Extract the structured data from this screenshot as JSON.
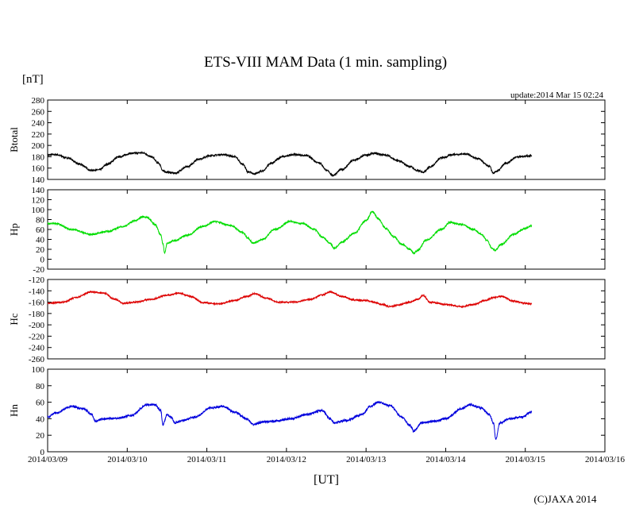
{
  "chart_data": {
    "type": "line",
    "title": "ETS-VIII MAM Data (1 min. sampling)",
    "unit_label": "[nT]",
    "update_label": "update:2014 Mar 15 02:24",
    "xlabel": "[UT]",
    "copyright": "(C)JAXA 2014",
    "x_ticks": [
      "2014/03/09",
      "2014/03/10",
      "2014/03/11",
      "2014/03/12",
      "2014/03/13",
      "2014/03/14",
      "2014/03/15",
      "2014/03/16"
    ],
    "x_range_days": [
      0,
      7
    ],
    "grid": false,
    "panels": [
      {
        "ylabel": "Btotal",
        "ylim": [
          140,
          280
        ],
        "yticks": [
          140,
          160,
          180,
          200,
          220,
          240,
          260,
          280
        ],
        "color": "#000000",
        "noise": 1.5,
        "series": [
          [
            0,
            183
          ],
          [
            0.1,
            184
          ],
          [
            0.25,
            178
          ],
          [
            0.4,
            167
          ],
          [
            0.55,
            156
          ],
          [
            0.65,
            157
          ],
          [
            0.75,
            167
          ],
          [
            0.9,
            180
          ],
          [
            1.05,
            186
          ],
          [
            1.2,
            187
          ],
          [
            1.3,
            180
          ],
          [
            1.4,
            168
          ],
          [
            1.45,
            155
          ],
          [
            1.5,
            153
          ],
          [
            1.6,
            151
          ],
          [
            1.75,
            162
          ],
          [
            1.9,
            176
          ],
          [
            2.05,
            182
          ],
          [
            2.2,
            184
          ],
          [
            2.35,
            180
          ],
          [
            2.45,
            167
          ],
          [
            2.52,
            153
          ],
          [
            2.6,
            150
          ],
          [
            2.7,
            155
          ],
          [
            2.8,
            168
          ],
          [
            2.95,
            180
          ],
          [
            3.1,
            184
          ],
          [
            3.25,
            182
          ],
          [
            3.4,
            170
          ],
          [
            3.52,
            155
          ],
          [
            3.58,
            147
          ],
          [
            3.7,
            158
          ],
          [
            3.85,
            174
          ],
          [
            4.0,
            183
          ],
          [
            4.1,
            186
          ],
          [
            4.25,
            183
          ],
          [
            4.4,
            173
          ],
          [
            4.55,
            163
          ],
          [
            4.65,
            155
          ],
          [
            4.72,
            153
          ],
          [
            4.8,
            162
          ],
          [
            4.95,
            178
          ],
          [
            5.1,
            184
          ],
          [
            5.25,
            185
          ],
          [
            5.4,
            177
          ],
          [
            5.55,
            163
          ],
          [
            5.6,
            151
          ],
          [
            5.65,
            155
          ],
          [
            5.75,
            168
          ],
          [
            5.9,
            180
          ],
          [
            6.08,
            182
          ]
        ]
      },
      {
        "ylabel": "Hp",
        "ylim": [
          -20,
          140
        ],
        "yticks": [
          -20,
          0,
          20,
          40,
          60,
          80,
          100,
          120,
          140
        ],
        "color": "#00dd00",
        "noise": 1.5,
        "series": [
          [
            0,
            72
          ],
          [
            0.1,
            72
          ],
          [
            0.3,
            60
          ],
          [
            0.55,
            50
          ],
          [
            0.75,
            56
          ],
          [
            0.95,
            66
          ],
          [
            1.1,
            78
          ],
          [
            1.2,
            86
          ],
          [
            1.25,
            84
          ],
          [
            1.35,
            70
          ],
          [
            1.42,
            50
          ],
          [
            1.45,
            30
          ],
          [
            1.47,
            12
          ],
          [
            1.5,
            32
          ],
          [
            1.6,
            38
          ],
          [
            1.75,
            48
          ],
          [
            1.95,
            66
          ],
          [
            2.1,
            76
          ],
          [
            2.3,
            68
          ],
          [
            2.45,
            54
          ],
          [
            2.52,
            42
          ],
          [
            2.58,
            32
          ],
          [
            2.7,
            40
          ],
          [
            2.85,
            60
          ],
          [
            3.05,
            76
          ],
          [
            3.2,
            72
          ],
          [
            3.35,
            60
          ],
          [
            3.45,
            45
          ],
          [
            3.55,
            32
          ],
          [
            3.6,
            22
          ],
          [
            3.7,
            35
          ],
          [
            3.85,
            52
          ],
          [
            4.0,
            78
          ],
          [
            4.08,
            96
          ],
          [
            4.15,
            82
          ],
          [
            4.25,
            62
          ],
          [
            4.35,
            45
          ],
          [
            4.45,
            30
          ],
          [
            4.55,
            20
          ],
          [
            4.6,
            12
          ],
          [
            4.65,
            18
          ],
          [
            4.75,
            38
          ],
          [
            4.95,
            60
          ],
          [
            5.05,
            74
          ],
          [
            5.2,
            70
          ],
          [
            5.35,
            60
          ],
          [
            5.45,
            50
          ],
          [
            5.52,
            38
          ],
          [
            5.58,
            22
          ],
          [
            5.62,
            18
          ],
          [
            5.7,
            30
          ],
          [
            5.85,
            50
          ],
          [
            6.0,
            62
          ],
          [
            6.08,
            68
          ]
        ]
      },
      {
        "ylabel": "Hc",
        "ylim": [
          -260,
          -120
        ],
        "yticks": [
          -260,
          -240,
          -220,
          -200,
          -180,
          -160,
          -140,
          -120
        ],
        "color": "#dd0000",
        "noise": 1.2,
        "series": [
          [
            0,
            -162
          ],
          [
            0.2,
            -160
          ],
          [
            0.35,
            -152
          ],
          [
            0.55,
            -142
          ],
          [
            0.7,
            -144
          ],
          [
            0.85,
            -155
          ],
          [
            0.95,
            -162
          ],
          [
            1.1,
            -160
          ],
          [
            1.3,
            -155
          ],
          [
            1.5,
            -148
          ],
          [
            1.65,
            -144
          ],
          [
            1.8,
            -150
          ],
          [
            1.95,
            -161
          ],
          [
            2.15,
            -163
          ],
          [
            2.35,
            -157
          ],
          [
            2.5,
            -150
          ],
          [
            2.6,
            -145
          ],
          [
            2.75,
            -153
          ],
          [
            2.9,
            -160
          ],
          [
            3.1,
            -160
          ],
          [
            3.3,
            -155
          ],
          [
            3.45,
            -147
          ],
          [
            3.55,
            -142
          ],
          [
            3.7,
            -150
          ],
          [
            3.85,
            -156
          ],
          [
            4.0,
            -157
          ],
          [
            4.1,
            -160
          ],
          [
            4.2,
            -164
          ],
          [
            4.3,
            -168
          ],
          [
            4.4,
            -165
          ],
          [
            4.55,
            -160
          ],
          [
            4.65,
            -155
          ],
          [
            4.72,
            -148
          ],
          [
            4.8,
            -160
          ],
          [
            5.0,
            -164
          ],
          [
            5.2,
            -168
          ],
          [
            5.35,
            -164
          ],
          [
            5.5,
            -157
          ],
          [
            5.6,
            -152
          ],
          [
            5.7,
            -150
          ],
          [
            5.85,
            -158
          ],
          [
            6.0,
            -162
          ],
          [
            6.08,
            -163
          ]
        ]
      },
      {
        "ylabel": "Hn",
        "ylim": [
          0,
          100
        ],
        "yticks": [
          0,
          20,
          40,
          60,
          80,
          100
        ],
        "color": "#0000dd",
        "noise": 1.2,
        "series": [
          [
            0,
            42
          ],
          [
            0.1,
            47
          ],
          [
            0.3,
            55
          ],
          [
            0.45,
            52
          ],
          [
            0.55,
            46
          ],
          [
            0.6,
            37
          ],
          [
            0.7,
            40
          ],
          [
            0.9,
            41
          ],
          [
            1.05,
            44
          ],
          [
            1.25,
            57
          ],
          [
            1.35,
            57
          ],
          [
            1.42,
            50
          ],
          [
            1.45,
            33
          ],
          [
            1.5,
            45
          ],
          [
            1.55,
            42
          ],
          [
            1.6,
            35
          ],
          [
            1.7,
            38
          ],
          [
            1.85,
            42
          ],
          [
            2.05,
            53
          ],
          [
            2.2,
            55
          ],
          [
            2.35,
            48
          ],
          [
            2.5,
            40
          ],
          [
            2.58,
            33
          ],
          [
            2.7,
            36
          ],
          [
            2.85,
            37
          ],
          [
            3.05,
            40
          ],
          [
            3.25,
            45
          ],
          [
            3.45,
            50
          ],
          [
            3.55,
            40
          ],
          [
            3.6,
            35
          ],
          [
            3.75,
            38
          ],
          [
            3.95,
            45
          ],
          [
            4.05,
            55
          ],
          [
            4.15,
            60
          ],
          [
            4.3,
            56
          ],
          [
            4.45,
            42
          ],
          [
            4.55,
            32
          ],
          [
            4.6,
            25
          ],
          [
            4.7,
            35
          ],
          [
            4.85,
            37
          ],
          [
            5.0,
            40
          ],
          [
            5.2,
            52
          ],
          [
            5.3,
            57
          ],
          [
            5.45,
            53
          ],
          [
            5.55,
            45
          ],
          [
            5.6,
            35
          ],
          [
            5.63,
            15
          ],
          [
            5.68,
            35
          ],
          [
            5.8,
            40
          ],
          [
            5.95,
            42
          ],
          [
            6.08,
            48
          ]
        ]
      }
    ]
  }
}
